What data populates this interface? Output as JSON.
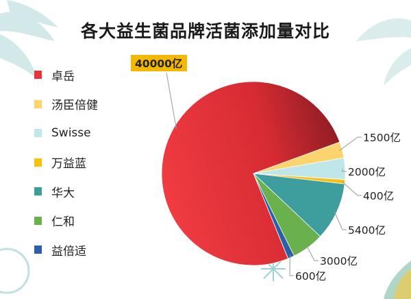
{
  "title": "各大益生菌品牌活菌添加量对比",
  "chart_data": {
    "type": "pie",
    "title": "各大益生菌品牌活菌添加量对比",
    "unit": "亿",
    "legend_position": "left",
    "series": [
      {
        "name": "卓岳",
        "value": 40000,
        "label": "40000亿",
        "color": "#e8333a"
      },
      {
        "name": "汤臣倍健",
        "value": 1500,
        "label": "1500亿",
        "color": "#fbd46d"
      },
      {
        "name": "Swisse",
        "value": 2000,
        "label": "2000亿",
        "color": "#bfe7ea"
      },
      {
        "name": "万益蓝",
        "value": 400,
        "label": "400亿",
        "color": "#f7c10d"
      },
      {
        "name": "华大",
        "value": 5400,
        "label": "5400亿",
        "color": "#3e9d9d"
      },
      {
        "name": "仁和",
        "value": 3000,
        "label": "3000亿",
        "color": "#6ab04c"
      },
      {
        "name": "益倍适",
        "value": 600,
        "label": "600亿",
        "color": "#2d5fa8"
      }
    ]
  }
}
